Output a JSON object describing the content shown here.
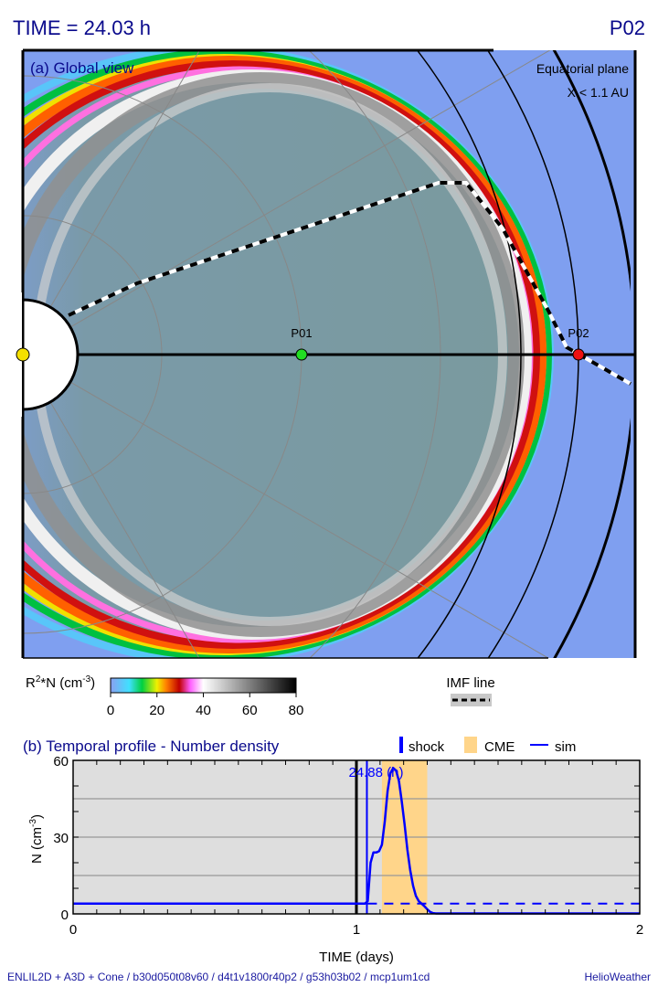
{
  "header": {
    "time_label": "TIME = 24.03 h",
    "probe": "P02"
  },
  "global_view": {
    "title": "(a) Global view",
    "plane_label": "Equatorial plane",
    "range_label": "X < 1.1 AU",
    "probes": [
      {
        "name": "P01",
        "r_au": 0.5,
        "color": "#22dd22"
      },
      {
        "name": "P02",
        "r_au": 1.0,
        "color": "#ee1111"
      }
    ]
  },
  "colorbar": {
    "label_main": "R",
    "label_sup": "2",
    "label_rest": "*N (cm",
    "label_exp": "-3",
    "label_end": ")",
    "ticks": [
      "0",
      "20",
      "40",
      "60",
      "80"
    ]
  },
  "imf_legend": {
    "label": "IMF line"
  },
  "chart_data": {
    "type": "line",
    "title": "(b) Temporal profile - Number density",
    "xlabel": "TIME (days)",
    "ylabel": "N (cm",
    "ylabel_exp": "-3",
    "ylabel_end": ")",
    "xlim": [
      0,
      2
    ],
    "ylim": [
      0,
      60
    ],
    "xticks": [
      "0",
      "1",
      "2"
    ],
    "yticks": [
      "0",
      "30",
      "60"
    ],
    "gridlines_y": [
      15,
      30,
      45
    ],
    "legend": {
      "shock": "shock",
      "cme": "CME",
      "sim": "sim"
    },
    "current_time_days": 1.0,
    "shock_time_days": 1.037,
    "shock_label": "24.88 (h)",
    "cme_interval_days": [
      1.09,
      1.25
    ],
    "sim": {
      "x": [
        0,
        1.03,
        1.04,
        1.05,
        1.06,
        1.07,
        1.08,
        1.09,
        1.1,
        1.11,
        1.12,
        1.13,
        1.14,
        1.15,
        1.16,
        1.17,
        1.18,
        1.19,
        1.2,
        1.21,
        1.22,
        1.23,
        1.24,
        1.25,
        1.26,
        1.27,
        1.28,
        2.0
      ],
      "y": [
        4,
        4,
        5,
        20,
        24,
        24,
        24.5,
        27,
        36,
        48,
        55,
        57,
        56,
        52,
        44,
        35,
        25,
        17,
        11,
        7,
        5,
        4,
        3,
        1.8,
        0.8,
        0.3,
        0.2,
        0.2
      ]
    },
    "upstream_dashed": {
      "x": [
        1.04,
        2.0
      ],
      "y": [
        4,
        4
      ]
    }
  },
  "footer": {
    "run_info": "ENLIL2D + A3D + Cone / b30d050t08v60 / d4t1v1800r40p2 / g53h03b02 / mcp1um1cd",
    "brand": "HelioWeather"
  },
  "colors": {
    "title": "#0a0a8c",
    "sim": "#0000ff",
    "cme": "#ffd58a",
    "plot_bg": "#dedede",
    "ambient": "#7f9ff0"
  }
}
